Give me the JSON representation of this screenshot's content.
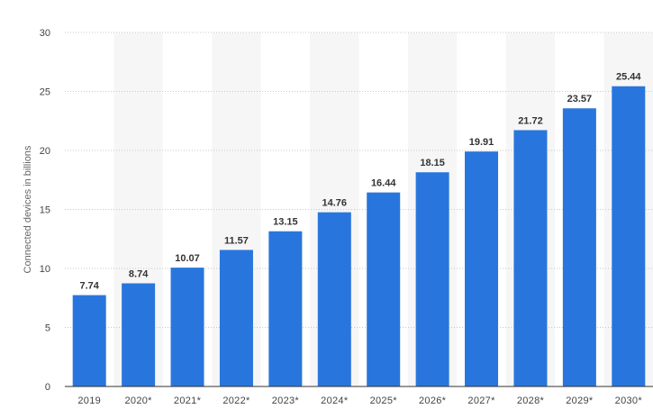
{
  "chart_data": {
    "type": "bar",
    "title": "",
    "xlabel": "",
    "ylabel": "Connected devices in billions",
    "categories": [
      "2019",
      "2020*",
      "2021*",
      "2022*",
      "2023*",
      "2024*",
      "2025*",
      "2026*",
      "2027*",
      "2028*",
      "2029*",
      "2030*"
    ],
    "values": [
      7.74,
      8.74,
      10.07,
      11.57,
      13.15,
      14.76,
      16.44,
      18.15,
      19.91,
      21.72,
      23.57,
      25.44
    ],
    "data_labels": [
      "7.74",
      "8.74",
      "10.07",
      "11.57",
      "13.15",
      "14.76",
      "16.44",
      "18.15",
      "19.91",
      "21.72",
      "23.57",
      "25.44"
    ],
    "ylim": [
      0,
      30
    ],
    "yticks": [
      0,
      5,
      10,
      15,
      20,
      25,
      30
    ],
    "grid": true,
    "legend": "none",
    "colors": {
      "bar": "#2876dd",
      "band": "#f6f6f6",
      "grid": "#c8c8c8",
      "axis": "#333333"
    }
  }
}
